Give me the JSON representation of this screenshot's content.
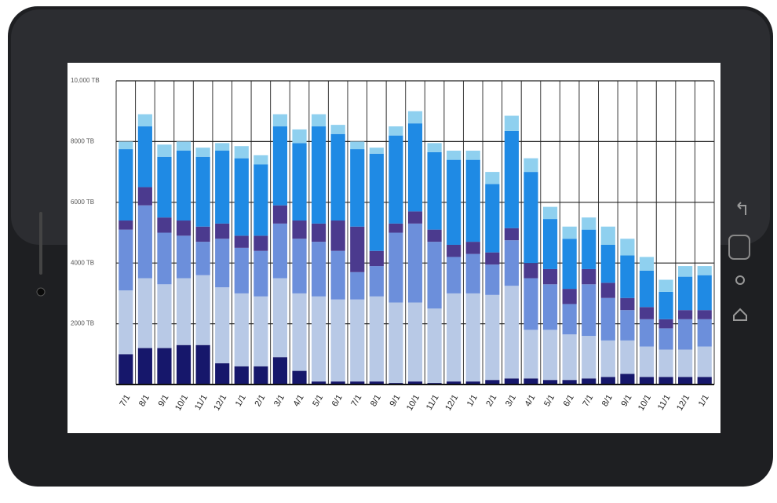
{
  "chart_data": {
    "type": "bar",
    "stacked": true,
    "grid": true,
    "categories": [
      "7/1",
      "8/1",
      "9/1",
      "10/1",
      "11/1",
      "12/1",
      "1/1",
      "2/1",
      "3/1",
      "4/1",
      "5/1",
      "6/1",
      "7/1",
      "8/1",
      "9/1",
      "10/1",
      "11/1",
      "12/1",
      "1/1",
      "2/1",
      "3/1",
      "4/1",
      "5/1",
      "6/1",
      "7/1",
      "8/1",
      "9/1",
      "10/1",
      "11/1",
      "12/1",
      "1/1"
    ],
    "series": [
      {
        "color": "#16176b",
        "values": [
          1000,
          1200,
          1200,
          1300,
          1300,
          700,
          600,
          600,
          900,
          450,
          100,
          100,
          100,
          100,
          50,
          100,
          50,
          100,
          100,
          150,
          200,
          200,
          150,
          150,
          200,
          250,
          350,
          250,
          250,
          250,
          250
        ]
      },
      {
        "color": "#b8c9e6",
        "values": [
          2100,
          2300,
          2100,
          2200,
          2300,
          2500,
          2400,
          2300,
          2600,
          2550,
          2800,
          2700,
          2700,
          2800,
          2650,
          2600,
          2450,
          2900,
          2900,
          2800,
          3050,
          1600,
          1650,
          1500,
          1400,
          1200,
          1100,
          1000,
          900,
          900,
          1000
        ]
      },
      {
        "color": "#6c8fdb",
        "values": [
          2000,
          2400,
          1700,
          1400,
          1100,
          1600,
          1500,
          1500,
          1800,
          1800,
          1800,
          1600,
          900,
          1000,
          2300,
          2600,
          2200,
          1200,
          1300,
          1000,
          1500,
          1700,
          1500,
          1000,
          1700,
          1400,
          1000,
          900,
          700,
          1000,
          900
        ]
      },
      {
        "color": "#4b3a8e",
        "values": [
          300,
          600,
          500,
          500,
          500,
          500,
          400,
          500,
          600,
          600,
          600,
          1000,
          1500,
          500,
          300,
          400,
          400,
          400,
          400,
          400,
          400,
          500,
          500,
          500,
          500,
          500,
          400,
          400,
          300,
          300,
          300
        ]
      },
      {
        "color": "#1f8ae4",
        "values": [
          2350,
          2000,
          2000,
          2300,
          2300,
          2400,
          2550,
          2350,
          2600,
          2550,
          3200,
          2850,
          2550,
          3200,
          2900,
          2900,
          2550,
          2800,
          2700,
          2250,
          3200,
          3000,
          1650,
          1650,
          1300,
          1250,
          1400,
          1200,
          900,
          1100,
          1150
        ]
      },
      {
        "color": "#8fd0ef",
        "values": [
          250,
          400,
          400,
          300,
          300,
          250,
          400,
          300,
          400,
          450,
          400,
          300,
          250,
          200,
          300,
          400,
          300,
          300,
          300,
          400,
          500,
          450,
          400,
          400,
          400,
          600,
          550,
          450,
          400,
          350,
          300
        ]
      }
    ],
    "ylim": [
      0,
      10000
    ],
    "yticks": [
      {
        "value": 2000,
        "label": "2000 TB"
      },
      {
        "value": 4000,
        "label": "4000 TB"
      },
      {
        "value": 6000,
        "label": "6000 TB"
      },
      {
        "value": 8000,
        "label": "8000 TB"
      },
      {
        "value": 10000,
        "label": "10,000 TB"
      }
    ]
  }
}
